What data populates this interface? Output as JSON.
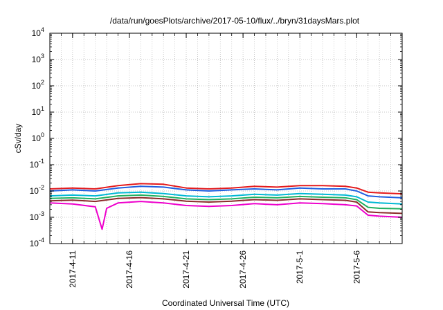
{
  "chart_data": {
    "type": "line",
    "title": "/data/run/goesPlots/archive/2017-05-10/flux/../bryn/31daysMars.plot",
    "xlabel": "Coordinated Universal Time (UTC)",
    "ylabel": "cSv/day",
    "y_scale": "log",
    "ylim": [
      0.0001,
      10000
    ],
    "y_ticks": [
      {
        "exp": "-4",
        "value": 0.0001
      },
      {
        "exp": "-3",
        "value": 0.001
      },
      {
        "exp": "-2",
        "value": 0.01
      },
      {
        "exp": "-1",
        "value": 0.1
      },
      {
        "exp": "0",
        "value": 1
      },
      {
        "exp": "1",
        "value": 10
      },
      {
        "exp": "2",
        "value": 100
      },
      {
        "exp": "3",
        "value": 1000
      },
      {
        "exp": "4",
        "value": 10000
      }
    ],
    "y_tick_base": "10",
    "xlim": [
      "2017-04-09",
      "2017-05-10"
    ],
    "x_ticks": [
      {
        "label": "2017-4-11",
        "date": "2017-04-11"
      },
      {
        "label": "2017-4-16",
        "date": "2017-04-16"
      },
      {
        "label": "2017-4-21",
        "date": "2017-04-21"
      },
      {
        "label": "2017-4-26",
        "date": "2017-04-26"
      },
      {
        "label": "2017-5-1",
        "date": "2017-05-01"
      },
      {
        "label": "2017-5-6",
        "date": "2017-05-06"
      }
    ],
    "grid": true,
    "series": [
      {
        "color": "#e41a1c",
        "x": [
          "2017-04-09",
          "2017-04-11",
          "2017-04-13",
          "2017-04-15",
          "2017-04-17",
          "2017-04-19",
          "2017-04-21",
          "2017-04-23",
          "2017-04-25",
          "2017-04-27",
          "2017-04-29",
          "2017-05-01",
          "2017-05-03",
          "2017-05-05",
          "2017-05-06",
          "2017-05-07",
          "2017-05-08",
          "2017-05-10"
        ],
        "values": [
          0.012,
          0.013,
          0.012,
          0.016,
          0.019,
          0.018,
          0.013,
          0.012,
          0.013,
          0.015,
          0.014,
          0.016,
          0.016,
          0.015,
          0.013,
          0.009,
          0.0085,
          0.0078
        ]
      },
      {
        "color": "#1f5fe0",
        "x": [
          "2017-04-09",
          "2017-04-11",
          "2017-04-13",
          "2017-04-15",
          "2017-04-17",
          "2017-04-19",
          "2017-04-21",
          "2017-04-23",
          "2017-04-25",
          "2017-04-27",
          "2017-04-29",
          "2017-05-01",
          "2017-05-03",
          "2017-05-05",
          "2017-05-06",
          "2017-05-07",
          "2017-05-08",
          "2017-05-10"
        ],
        "values": [
          0.01,
          0.011,
          0.01,
          0.013,
          0.015,
          0.014,
          0.011,
          0.01,
          0.011,
          0.012,
          0.011,
          0.013,
          0.012,
          0.012,
          0.01,
          0.0065,
          0.006,
          0.0055
        ]
      },
      {
        "color": "#00b8d4",
        "x": [
          "2017-04-09",
          "2017-04-11",
          "2017-04-13",
          "2017-04-15",
          "2017-04-17",
          "2017-04-19",
          "2017-04-21",
          "2017-04-23",
          "2017-04-25",
          "2017-04-27",
          "2017-04-29",
          "2017-05-01",
          "2017-05-03",
          "2017-05-05",
          "2017-05-06",
          "2017-05-07",
          "2017-05-08",
          "2017-05-10"
        ],
        "values": [
          0.0065,
          0.007,
          0.0065,
          0.0085,
          0.009,
          0.008,
          0.0065,
          0.006,
          0.0065,
          0.0075,
          0.007,
          0.008,
          0.0075,
          0.007,
          0.006,
          0.0038,
          0.0035,
          0.0032
        ]
      },
      {
        "color": "#20b060",
        "x": [
          "2017-04-09",
          "2017-04-11",
          "2017-04-13",
          "2017-04-15",
          "2017-04-17",
          "2017-04-19",
          "2017-04-21",
          "2017-04-23",
          "2017-04-25",
          "2017-04-27",
          "2017-04-29",
          "2017-05-01",
          "2017-05-03",
          "2017-05-05",
          "2017-05-06",
          "2017-05-07",
          "2017-05-08",
          "2017-05-10"
        ],
        "values": [
          0.0052,
          0.0055,
          0.005,
          0.0065,
          0.007,
          0.0062,
          0.005,
          0.0047,
          0.005,
          0.0058,
          0.0055,
          0.0062,
          0.0058,
          0.0055,
          0.0047,
          0.0024,
          0.0022,
          0.0021
        ]
      },
      {
        "color": "#8b2a2a",
        "x": [
          "2017-04-09",
          "2017-04-11",
          "2017-04-13",
          "2017-04-15",
          "2017-04-17",
          "2017-04-19",
          "2017-04-21",
          "2017-04-23",
          "2017-04-25",
          "2017-04-27",
          "2017-04-29",
          "2017-05-01",
          "2017-05-03",
          "2017-05-05",
          "2017-05-06",
          "2017-05-07",
          "2017-05-08",
          "2017-05-10"
        ],
        "values": [
          0.0042,
          0.0045,
          0.004,
          0.0052,
          0.0056,
          0.005,
          0.0041,
          0.0038,
          0.0041,
          0.0047,
          0.0044,
          0.005,
          0.0047,
          0.0044,
          0.0038,
          0.0016,
          0.0015,
          0.0014
        ]
      },
      {
        "color": "#ee00cc",
        "x": [
          "2017-04-09",
          "2017-04-11",
          "2017-04-13",
          "2017-04-13.6",
          "2017-04-14",
          "2017-04-15",
          "2017-04-17",
          "2017-04-19",
          "2017-04-21",
          "2017-04-23",
          "2017-04-25",
          "2017-04-27",
          "2017-04-29",
          "2017-05-01",
          "2017-05-03",
          "2017-05-05",
          "2017-05-06",
          "2017-05-07",
          "2017-05-08",
          "2017-05-10"
        ],
        "values": [
          0.0035,
          0.0032,
          0.0025,
          0.00035,
          0.0022,
          0.0035,
          0.004,
          0.0035,
          0.0028,
          0.0026,
          0.0028,
          0.0033,
          0.003,
          0.0035,
          0.0033,
          0.003,
          0.0027,
          0.0012,
          0.0011,
          0.001
        ]
      }
    ]
  }
}
